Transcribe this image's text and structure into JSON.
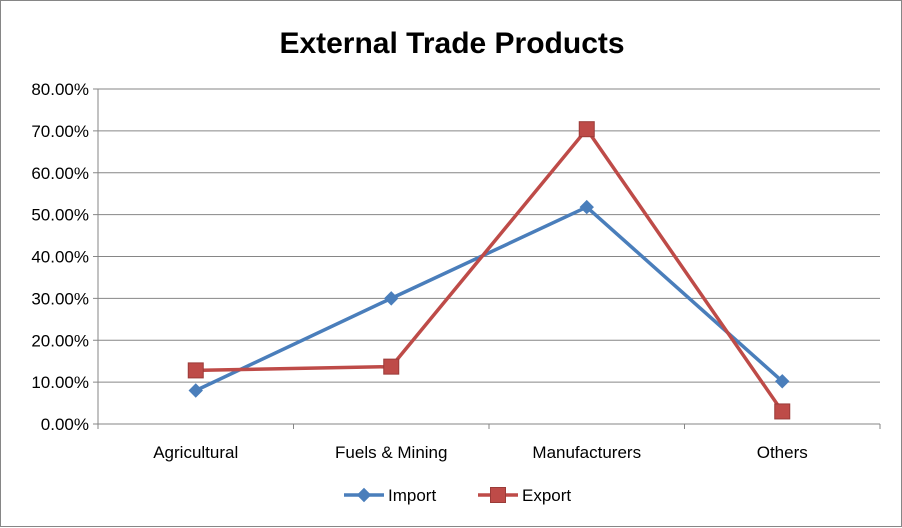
{
  "chart_data": {
    "type": "line",
    "title": "External Trade Products",
    "categories": [
      "Agricultural",
      "Fuels & Mining",
      "Manufacturers",
      "Others"
    ],
    "series": [
      {
        "name": "Import",
        "values": [
          8.0,
          30.0,
          51.8,
          10.2
        ],
        "color": "#4a7ebb",
        "marker": "diamond"
      },
      {
        "name": "Export",
        "values": [
          12.8,
          13.7,
          70.4,
          3.0
        ],
        "color": "#be4b48",
        "marker": "square"
      }
    ],
    "ylim": [
      0,
      80
    ],
    "yticks": [
      "0.00%",
      "10.00%",
      "20.00%",
      "30.00%",
      "40.00%",
      "50.00%",
      "60.00%",
      "70.00%",
      "80.00%"
    ],
    "grid": true,
    "legend_position": "bottom"
  }
}
